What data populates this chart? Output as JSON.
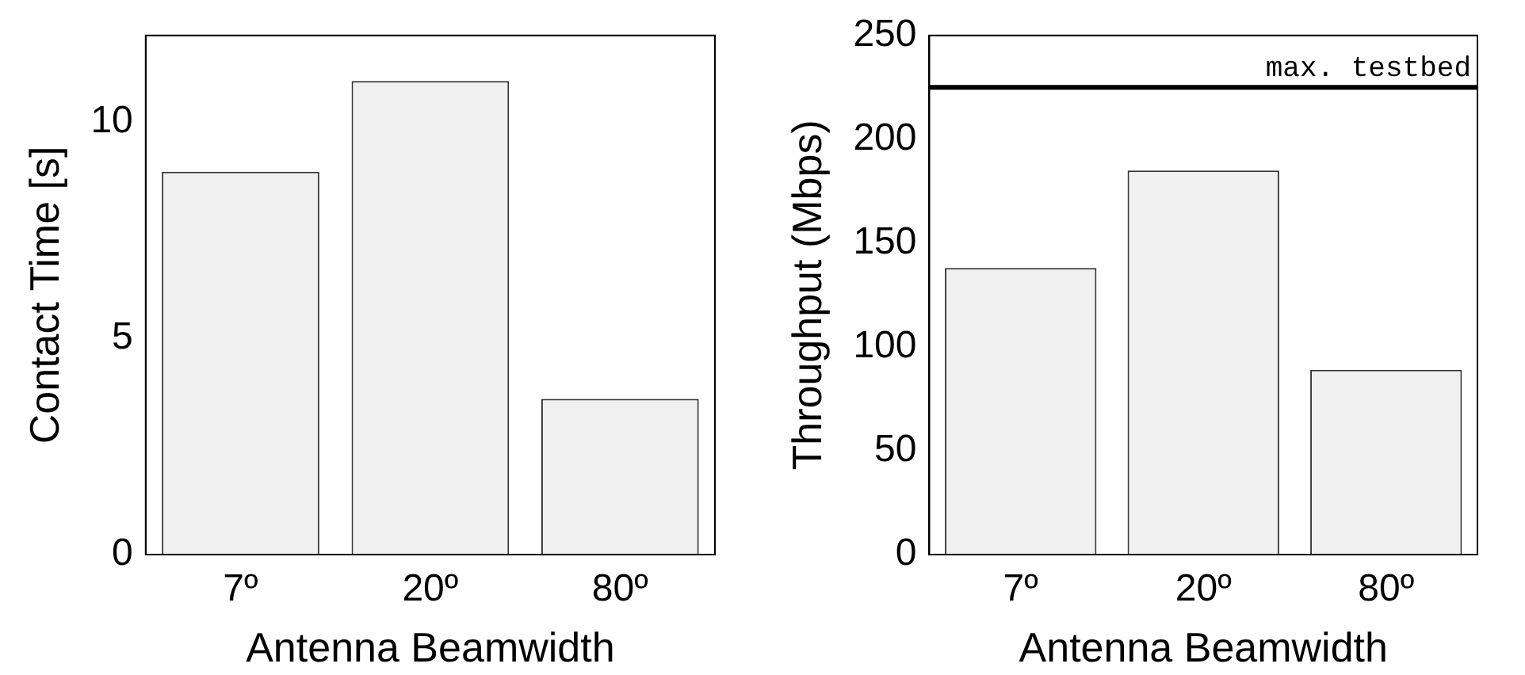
{
  "chart_data": [
    {
      "type": "bar",
      "categories": [
        "7º",
        "20º",
        "80º"
      ],
      "values": [
        8.85,
        10.95,
        3.6
      ],
      "color": "#f0f0f0",
      "ylim": [
        0,
        12
      ],
      "yticks": [
        0,
        5,
        10
      ],
      "xlabel": "Antenna Beamwidth",
      "ylabel": "Contact Time [s]",
      "grid": false,
      "legend": false
    },
    {
      "type": "bar",
      "categories": [
        "7º",
        "20º",
        "80º"
      ],
      "values": [
        138,
        185,
        89
      ],
      "color": "#f0f0f0",
      "ylim": [
        0,
        250
      ],
      "yticks": [
        0,
        50,
        100,
        150,
        200,
        250
      ],
      "xlabel": "Antenna Beamwidth",
      "ylabel": "Throughput (Mbps)",
      "grid": false,
      "legend": false,
      "ref_lines": [
        {
          "axis": "y",
          "value": 225,
          "label": "max. testbed",
          "color": "#000000"
        }
      ]
    }
  ]
}
